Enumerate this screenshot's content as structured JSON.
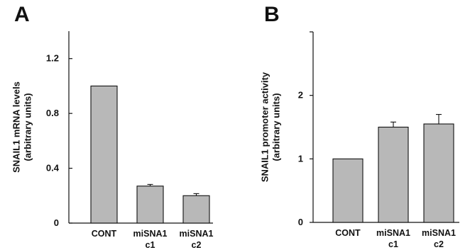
{
  "chart_data": [
    {
      "type": "bar",
      "panel": "A",
      "ylabel": [
        "SNAIL1 mRNA levels",
        "(arbitrary units)"
      ],
      "categories": [
        [
          "CONT"
        ],
        [
          "miSNA1",
          "c1"
        ],
        [
          "miSNA1",
          "c2"
        ]
      ],
      "values": [
        1.0,
        0.27,
        0.2
      ],
      "errors": [
        0,
        0.012,
        0.015
      ],
      "ylim": [
        0,
        1.4
      ],
      "yticks": [
        0,
        0.4,
        0.8,
        1.2
      ],
      "ytick_labels": [
        "0",
        "0.4",
        "0.8",
        "1.2"
      ],
      "bar_color": "#b8b8b8"
    },
    {
      "type": "bar",
      "panel": "B",
      "ylabel": [
        "SNAIL1 promoter activity",
        "(arbitrary units)"
      ],
      "categories": [
        [
          "CONT"
        ],
        [
          "miSNA1",
          "c1"
        ],
        [
          "miSNA1",
          "c2"
        ]
      ],
      "values": [
        1.0,
        1.5,
        1.55
      ],
      "errors": [
        0,
        0.08,
        0.15
      ],
      "ylim": [
        0,
        3
      ],
      "yticks": [
        0,
        1,
        2
      ],
      "ytick_labels": [
        "0",
        "1",
        "2"
      ],
      "bar_color": "#b8b8b8"
    }
  ]
}
